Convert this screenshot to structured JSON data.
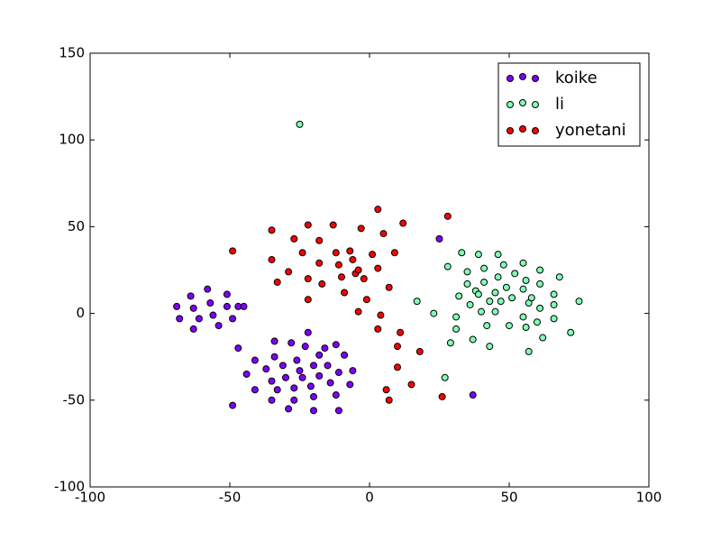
{
  "chart_data": {
    "type": "scatter",
    "xlim": [
      -100,
      100
    ],
    "ylim": [
      -100,
      150
    ],
    "xticks": [
      -100,
      -50,
      0,
      50,
      100
    ],
    "yticks": [
      -100,
      -50,
      0,
      50,
      100,
      150
    ],
    "grid": false,
    "legend": "upper right",
    "series": [
      {
        "name": "koike",
        "color": "#7f00ff",
        "x": [
          -69,
          -68,
          -64,
          -63,
          -63,
          -61,
          -58,
          -57,
          -56,
          -54,
          -51,
          -51,
          -49,
          -47,
          -45,
          -47,
          -49,
          -44,
          -41,
          -41,
          -37,
          -35,
          -35,
          -34,
          -34,
          -33,
          -31,
          -30,
          -29,
          -28,
          -27,
          -27,
          -26,
          -25,
          -24,
          -23,
          -22,
          -21,
          -20,
          -20,
          -20,
          -18,
          -18,
          -16,
          -15,
          -14,
          -12,
          -12,
          -11,
          -11,
          -9,
          -7,
          -6,
          25,
          37
        ],
        "values": [
          4,
          -3,
          10,
          3,
          -9,
          -3,
          14,
          6,
          -1,
          -7,
          11,
          4,
          -3,
          4,
          4,
          -20,
          -53,
          -35,
          -27,
          -44,
          -32,
          -39,
          -50,
          -16,
          -25,
          -44,
          -30,
          -37,
          -55,
          -17,
          -43,
          -50,
          -27,
          -33,
          -37,
          -19,
          -11,
          -42,
          -48,
          -56,
          -30,
          -24,
          -36,
          -20,
          -30,
          -40,
          -18,
          -47,
          -34,
          -56,
          -24,
          -41,
          -33,
          43,
          -47
        ]
      },
      {
        "name": "li",
        "color": "#80ffb4",
        "x": [
          -25,
          17,
          23,
          28,
          29,
          27,
          31,
          31,
          32,
          33,
          35,
          35,
          36,
          37,
          38,
          39,
          40,
          39,
          41,
          41,
          42,
          43,
          43,
          45,
          45,
          46,
          46,
          47,
          48,
          49,
          50,
          51,
          52,
          55,
          55,
          55,
          56,
          56,
          57,
          57,
          58,
          60,
          61,
          61,
          61,
          62,
          66,
          66,
          66,
          68,
          72,
          75
        ],
        "values": [
          109,
          7,
          0,
          27,
          -17,
          -37,
          -9,
          -2,
          10,
          35,
          17,
          24,
          5,
          -15,
          13,
          11,
          1,
          34,
          18,
          26,
          -7,
          7,
          -19,
          12,
          1,
          21,
          34,
          7,
          28,
          15,
          -7,
          9,
          23,
          -2,
          29,
          14,
          19,
          -8,
          6,
          -22,
          9,
          -5,
          25,
          3,
          17,
          -14,
          11,
          5,
          -3,
          21,
          -11,
          7
        ]
      },
      {
        "name": "yonetani",
        "color": "#ff0000",
        "x": [
          -49,
          -35,
          -35,
          -33,
          -29,
          -27,
          -24,
          -22,
          -22,
          -22,
          -18,
          -18,
          -17,
          -13,
          -12,
          -11,
          -10,
          -9,
          -7,
          -6,
          -5,
          -4,
          -4,
          -3,
          -2,
          -1,
          1,
          3,
          3,
          3,
          5,
          4,
          7,
          9,
          6,
          7,
          10,
          10,
          11,
          12,
          15,
          18,
          28,
          26
        ],
        "values": [
          36,
          48,
          31,
          18,
          24,
          43,
          35,
          51,
          20,
          8,
          29,
          42,
          17,
          51,
          35,
          28,
          21,
          12,
          36,
          31,
          23,
          25,
          1,
          49,
          20,
          8,
          34,
          26,
          60,
          -9,
          46,
          -1,
          15,
          35,
          -44,
          -50,
          -19,
          -31,
          -11,
          52,
          -41,
          -22,
          56,
          -48
        ]
      }
    ]
  }
}
